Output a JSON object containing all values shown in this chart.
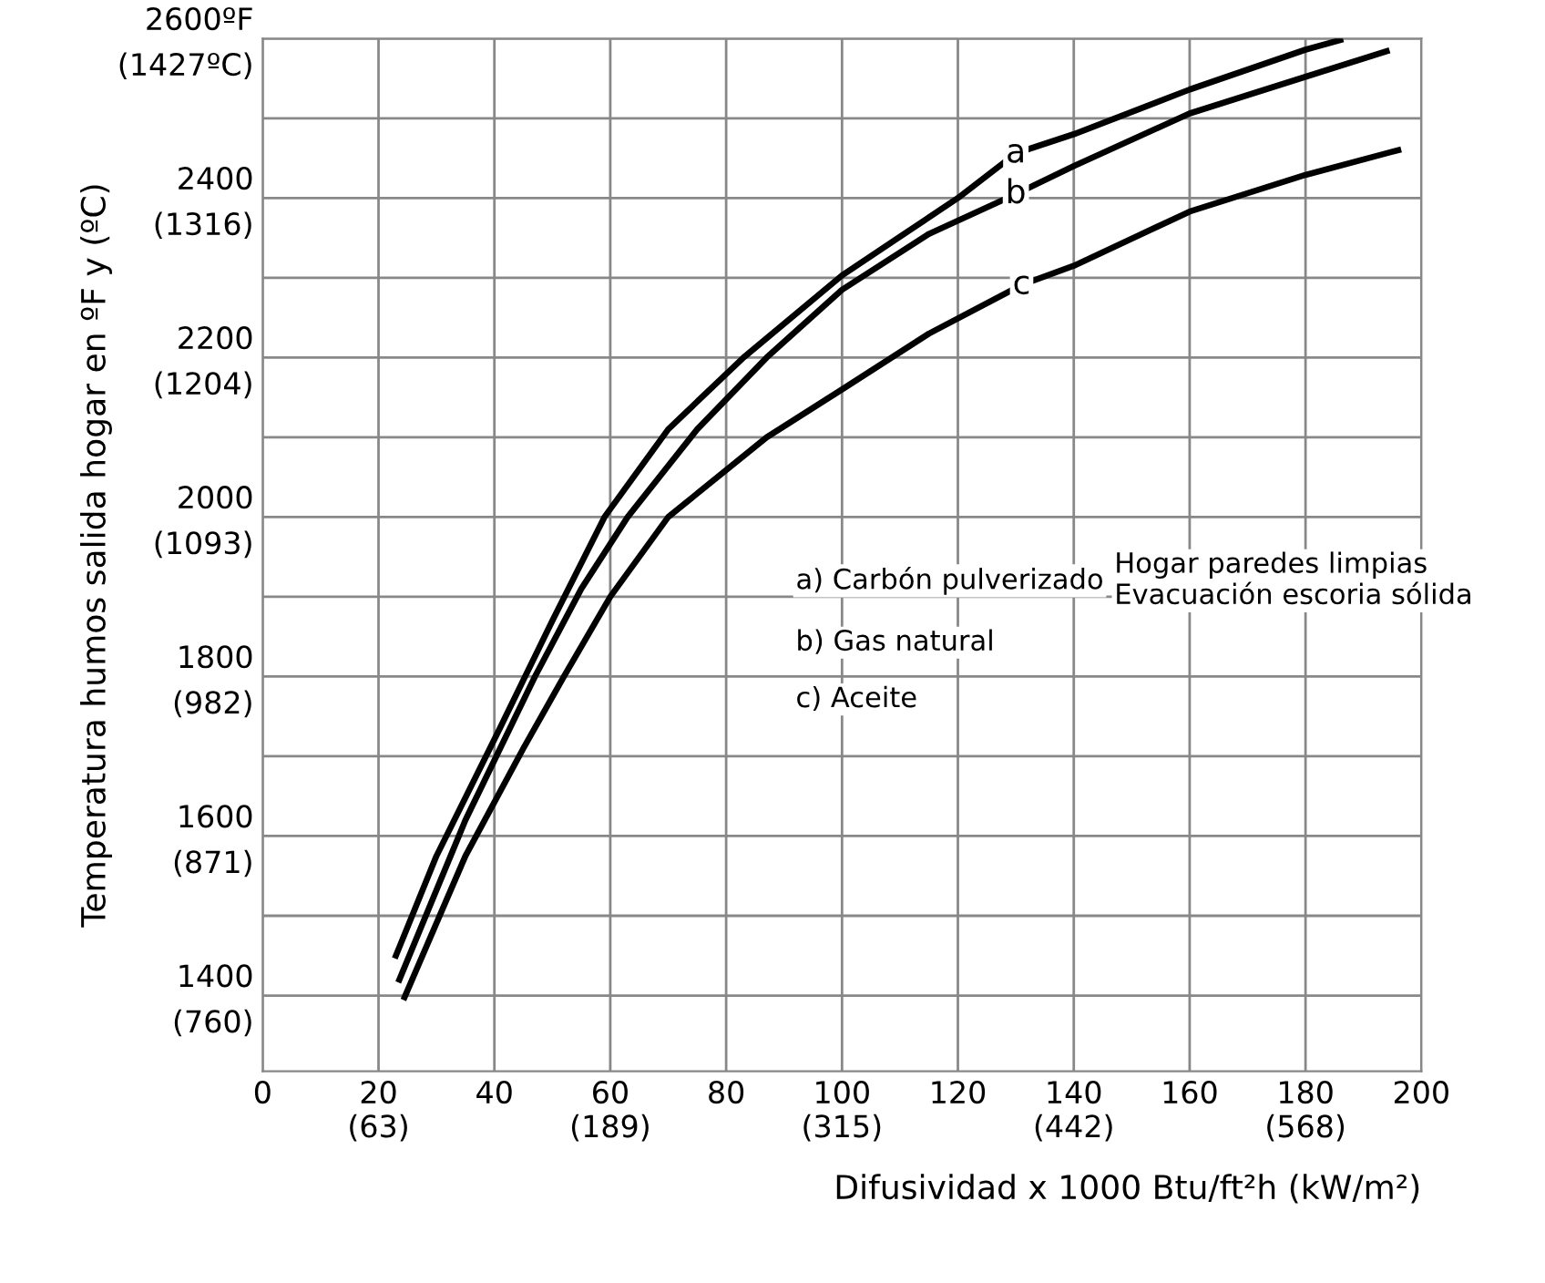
{
  "chart_data": {
    "type": "line",
    "xlabel": "Difusividad x 1000 Btu/ft²h (kW/m²)",
    "ylabel": "Temperatura humos salida hogar en ºF y (ºC)",
    "xlim": [
      0,
      200
    ],
    "ylim": [
      707.2,
      1426.7
    ],
    "xticks": [
      0,
      {
        "value": 20,
        "label": "20\n(63)"
      },
      40,
      {
        "value": 60,
        "label": "60\n(189)"
      },
      80,
      {
        "value": 100,
        "label": "100\n(315)"
      },
      120,
      {
        "value": 140,
        "label": "140\n(442)"
      },
      160,
      {
        "value": 180,
        "label": "180\n(568)"
      },
      200
    ],
    "yticks": [
      {
        "value": 760,
        "label": "(760)"
      },
      {
        "value": 871.1,
        "label": "(871)"
      },
      {
        "value": 982.2,
        "label": "(982)"
      },
      {
        "value": 1093.3,
        "label": "(1093)"
      },
      {
        "value": 1204.4,
        "label": "(1204)"
      },
      {
        "value": 1315.6,
        "label": "(1316)"
      },
      {
        "value": 1426.7,
        "label": "(1427ºC)"
      }
    ],
    "y2lim": [
      1305,
      2600
    ],
    "y2ticks": [
      1400,
      {
        "value": 1500,
        "label": null
      },
      1600,
      {
        "value": 1700,
        "label": null
      },
      1800,
      {
        "value": 1900,
        "label": null
      },
      2000,
      {
        "value": 2100,
        "label": null
      },
      2200,
      {
        "value": 2300,
        "label": null
      },
      2400,
      {
        "value": 2500,
        "label": null
      },
      {
        "value": 2600,
        "label": "2600ºF"
      }
    ],
    "grid": true,
    "legend": false,
    "series": [
      {
        "name": "a",
        "color": "#000000",
        "axis": "y2",
        "x": [
          23,
          30,
          41,
          50,
          59,
          70,
          83,
          100,
          120,
          130,
          140,
          160,
          180,
          186
        ],
        "values": [
          1450,
          1575,
          1736,
          1870,
          2000,
          2110,
          2200,
          2303,
          2400,
          2456,
          2480,
          2536,
          2586,
          2598
        ]
      },
      {
        "name": "b",
        "color": "#000000",
        "axis": "y2",
        "x": [
          23.6,
          35,
          47,
          55,
          63,
          75,
          87,
          100,
          115,
          130,
          140,
          160,
          180,
          194
        ],
        "values": [
          1420,
          1620,
          1800,
          1910,
          2000,
          2110,
          2200,
          2285,
          2355,
          2405,
          2440,
          2506,
          2552,
          2584
        ]
      },
      {
        "name": "c",
        "color": "#000000",
        "axis": "y2",
        "x": [
          24.5,
          35,
          45,
          52,
          60,
          70,
          87,
          100,
          115,
          131,
          140,
          160,
          180,
          196
        ],
        "values": [
          1398,
          1575,
          1710,
          1800,
          1900,
          2000,
          2100,
          2160,
          2230,
          2291,
          2315,
          2383,
          2429,
          2460
        ]
      }
    ],
    "annotations": [
      "a) Carbón pulverizado",
      "b) Gas natural",
      "c) Aceite",
      "Hogar paredes limpias\nEvacuación escoria sólida"
    ]
  }
}
